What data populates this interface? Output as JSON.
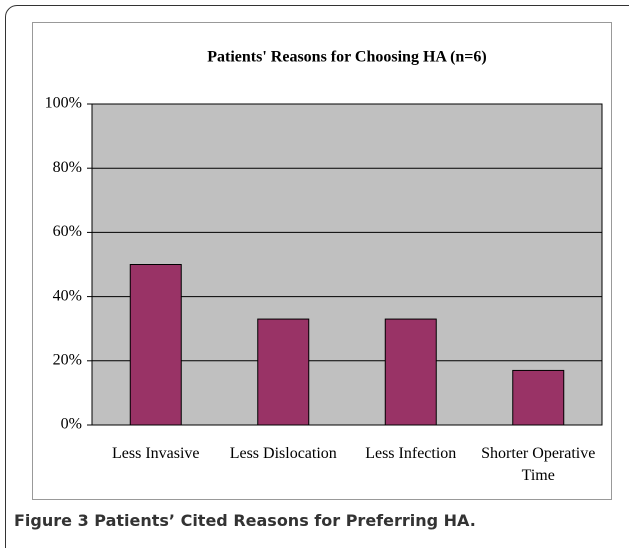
{
  "chart_data": {
    "type": "bar",
    "title": "Patients' Reasons for Choosing HA (n=6)",
    "categories": [
      "Less Invasive",
      "Less Dislocation",
      "Less Infection",
      "Shorter Operative Time"
    ],
    "values": [
      50,
      33,
      33,
      17
    ],
    "color": "#993366",
    "ylim": [
      0,
      100
    ],
    "yticks": [
      {
        "value": 0,
        "label": "0%"
      },
      {
        "value": 20,
        "label": "20%"
      },
      {
        "value": 40,
        "label": "40%"
      },
      {
        "value": 60,
        "label": "60%"
      },
      {
        "value": 80,
        "label": "80%"
      },
      {
        "value": 100,
        "label": "100%"
      }
    ],
    "grid": true
  },
  "caption": {
    "label": "Figure 3",
    "text": "Patients’ Cited Reasons for Preferring HA."
  }
}
